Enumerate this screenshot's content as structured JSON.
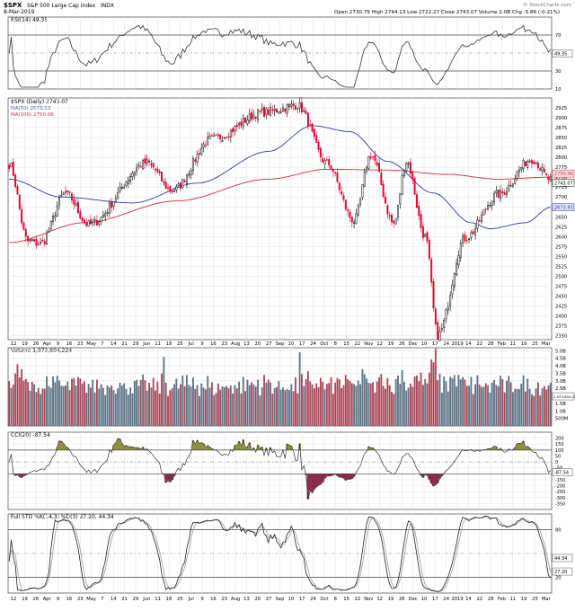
{
  "header": {
    "symbol": "$SPX",
    "name": "S&P 500 Large Cap Index",
    "exchange": "INDX",
    "date": "8-Mar-2019",
    "ohlc": "Open 2730.79  High 2744.13  Low 2722.27  Close 2743.07  Volume 2.0B  Chg -5.86 (-0.21%)",
    "watermark": "© StockCharts.com"
  },
  "colors": {
    "up_candle": "#000000",
    "down_candle": "#e3002d",
    "ma50": "#2b3a9a",
    "ma200": "#d6283c",
    "vol_up": "#5d7486",
    "vol_down": "#a8485a",
    "cci_fill": "#8f8f3c",
    "cci_neg_fill": "#8b2c4e",
    "panel_bg": "#ffffff",
    "grid": "#e7e7e7",
    "ref_line": "#6f6f6f"
  },
  "chart_data": [
    {
      "type": "line",
      "panel": "rsi",
      "legend": "RSI(14) 49.35",
      "ylim": [
        10,
        90
      ],
      "y_ticks": [
        "70",
        "30",
        "10"
      ],
      "ref_lines": [
        70,
        30
      ],
      "last_value": "49.35"
    },
    {
      "type": "candlestick",
      "panel": "price",
      "legend": [
        "$SPX (Daily) 2743.07",
        "MA(50) 2673.93",
        "MA(200) 2750.06"
      ],
      "ylim": [
        2340,
        2950
      ],
      "y_ticks": [
        "2925",
        "2900",
        "2875",
        "2850",
        "2825",
        "2800",
        "2775",
        "2750",
        "2725",
        "2700",
        "2675",
        "2650",
        "2625",
        "2600",
        "2575",
        "2550",
        "2525",
        "2500",
        "2475",
        "2450",
        "2425",
        "2400",
        "2375",
        "2350"
      ],
      "last_labels": [
        "2750.06",
        "2743.07",
        "2673.93"
      ],
      "x_ticks": [
        "12",
        "19",
        "26",
        "Apr",
        "9",
        "16",
        "23",
        "May",
        "7",
        "14",
        "21",
        "29",
        "Jun",
        "11",
        "18",
        "25",
        "Jul",
        "9",
        "16",
        "23",
        "Aug",
        "13",
        "20",
        "27",
        "Sep",
        "10",
        "17",
        "24",
        "Oct",
        "8",
        "15",
        "22",
        "Nov",
        "12",
        "19",
        "26",
        "Dec",
        "10",
        "17",
        "24",
        "2019",
        "14",
        "22",
        "28",
        "Feb",
        "11",
        "19",
        "25",
        "Mar"
      ],
      "anchors": [
        {
          "date": "Mar-12",
          "close": 2783
        },
        {
          "date": "Mar-23",
          "close": 2588
        },
        {
          "date": "Apr-02",
          "close": 2582
        },
        {
          "date": "Apr-18",
          "close": 2709
        },
        {
          "date": "May-03",
          "close": 2630
        },
        {
          "date": "Jun-12",
          "close": 2786
        },
        {
          "date": "Jun-28",
          "close": 2716
        },
        {
          "date": "Jul-25",
          "close": 2846
        },
        {
          "date": "Aug-29",
          "close": 2914
        },
        {
          "date": "Sep-20",
          "close": 2931
        },
        {
          "date": "Oct-10",
          "close": 2785
        },
        {
          "date": "Oct-29",
          "close": 2641
        },
        {
          "date": "Nov-08",
          "close": 2806
        },
        {
          "date": "Nov-23",
          "close": 2633
        },
        {
          "date": "Dec-03",
          "close": 2790
        },
        {
          "date": "Dec-14",
          "close": 2600
        },
        {
          "date": "Dec-24",
          "close": 2351
        },
        {
          "date": "Jan-10",
          "close": 2596
        },
        {
          "date": "Feb-01",
          "close": 2706
        },
        {
          "date": "Feb-25",
          "close": 2796
        },
        {
          "date": "Mar-08",
          "close": 2743
        }
      ],
      "ma50_anchors": [
        {
          "date": "Mar-12",
          "v": 2745
        },
        {
          "date": "Apr-15",
          "v": 2700
        },
        {
          "date": "Jun-01",
          "v": 2685
        },
        {
          "date": "Jul-15",
          "v": 2735
        },
        {
          "date": "Sep-01",
          "v": 2815
        },
        {
          "date": "Oct-01",
          "v": 2880
        },
        {
          "date": "Oct-25",
          "v": 2865
        },
        {
          "date": "Nov-20",
          "v": 2790
        },
        {
          "date": "Dec-20",
          "v": 2710
        },
        {
          "date": "Jan-15",
          "v": 2635
        },
        {
          "date": "Jan-28",
          "v": 2620
        },
        {
          "date": "Feb-20",
          "v": 2635
        },
        {
          "date": "Mar-08",
          "v": 2674
        }
      ],
      "ma200_anchors": [
        {
          "date": "Mar-12",
          "v": 2585
        },
        {
          "date": "May-01",
          "v": 2635
        },
        {
          "date": "Jul-01",
          "v": 2690
        },
        {
          "date": "Sep-01",
          "v": 2745
        },
        {
          "date": "Oct-10",
          "v": 2770
        },
        {
          "date": "Nov-20",
          "v": 2768
        },
        {
          "date": "Dec-31",
          "v": 2757
        },
        {
          "date": "Feb-01",
          "v": 2745
        },
        {
          "date": "Mar-08",
          "v": 2750
        }
      ]
    },
    {
      "type": "bar",
      "panel": "volume",
      "legend": "Volume 1,973,604,224",
      "ylim": [
        0,
        5.2
      ],
      "y_ticks": [
        "5.0B",
        "4.5B",
        "4.0B",
        "3.5B",
        "3.0B",
        "2.5B",
        "2.0B",
        "1.5B",
        "1.0B",
        "500M"
      ],
      "last_label": "1,973,604,224"
    },
    {
      "type": "area",
      "panel": "cci",
      "legend": "CCI(20) -87.54",
      "ylim": [
        -400,
        250
      ],
      "y_ticks": [
        "200",
        "150",
        "100",
        "50",
        "0",
        "-50",
        "-100",
        "-150",
        "-200",
        "-250",
        "-300",
        "-350"
      ],
      "ref_lines": [
        100,
        0,
        -100
      ],
      "last_value": "-87.54"
    },
    {
      "type": "line",
      "panel": "stochastic",
      "legend": "Full STO %K(14,3) %D(3) 27.20, 44.34",
      "ylim": [
        0,
        100
      ],
      "y_ticks": [
        "80",
        "20"
      ],
      "ref_lines": [
        80,
        50,
        20
      ],
      "last_labels": [
        "44.34",
        "27.20"
      ]
    }
  ]
}
